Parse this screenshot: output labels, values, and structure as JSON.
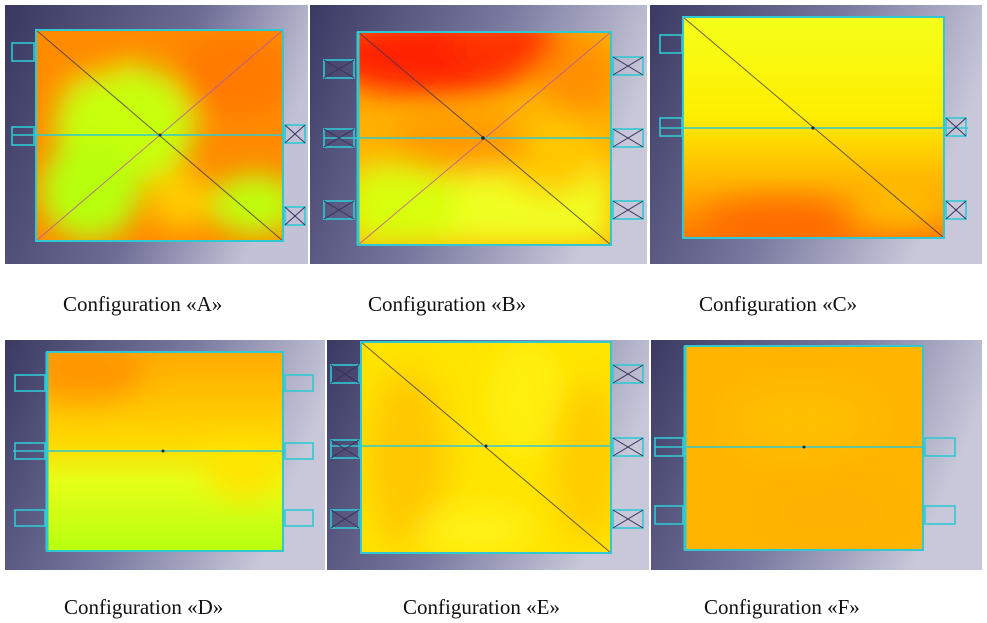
{
  "figure": {
    "captions": {
      "a": "Configuration «A»",
      "b": "Configuration «B»",
      "c": "Configuration «C»",
      "d": "Configuration «D»",
      "e": "Configuration «E»",
      "f": "Configuration «F»"
    }
  },
  "colors": {
    "background_dark": "#3b3a6a",
    "background_light": "#b9b9cf",
    "outline": "#30c8d2",
    "hot": "#ff1a00",
    "warm": "#ff9a00",
    "mild": "#ffe000",
    "cool": "#b8ff10"
  }
}
